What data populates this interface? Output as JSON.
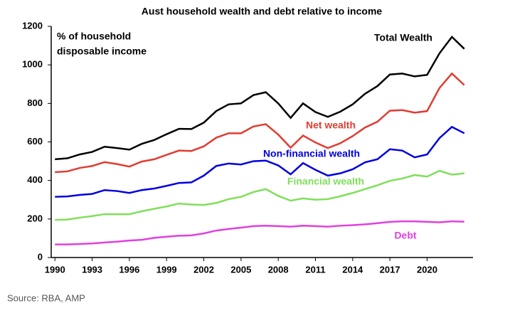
{
  "chart_data": {
    "type": "line",
    "title": "Aust household wealth and debt relative to income",
    "y_label": [
      "% of household",
      "disposable income"
    ],
    "source": "Source: RBA, AMP",
    "x": [
      1990,
      1991,
      1992,
      1993,
      1994,
      1995,
      1996,
      1997,
      1998,
      1999,
      2000,
      2001,
      2002,
      2003,
      2004,
      2005,
      2006,
      2007,
      2008,
      2009,
      2010,
      2011,
      2012,
      2013,
      2014,
      2015,
      2016,
      2017,
      2018,
      2019,
      2020,
      2021,
      2022,
      2023
    ],
    "xlim": [
      1989.7,
      2023.7
    ],
    "xticks": [
      1990,
      1993,
      1996,
      1999,
      2002,
      2005,
      2008,
      2011,
      2014,
      2017,
      2020
    ],
    "ylim": [
      0,
      1200
    ],
    "yticks": [
      0,
      200,
      400,
      600,
      800,
      1000,
      1200
    ],
    "series": [
      {
        "name": "Total Wealth",
        "color": "#000000",
        "values": [
          510,
          515,
          535,
          548,
          575,
          568,
          560,
          590,
          610,
          640,
          668,
          667,
          700,
          760,
          795,
          800,
          843,
          858,
          800,
          725,
          800,
          755,
          730,
          757,
          795,
          850,
          890,
          950,
          955,
          940,
          948,
          1060,
          1145,
          1083
        ]
      },
      {
        "name": "Net wealth",
        "color": "#e03c31",
        "values": [
          443,
          447,
          465,
          475,
          495,
          485,
          472,
          498,
          510,
          533,
          555,
          553,
          577,
          622,
          645,
          645,
          680,
          692,
          638,
          570,
          633,
          597,
          568,
          593,
          630,
          675,
          705,
          762,
          765,
          752,
          760,
          880,
          955,
          895
        ]
      },
      {
        "name": "Non-financial wealth",
        "color": "#0000e0",
        "values": [
          315,
          317,
          325,
          330,
          350,
          345,
          335,
          350,
          358,
          372,
          387,
          390,
          425,
          475,
          488,
          483,
          500,
          503,
          478,
          432,
          490,
          455,
          425,
          437,
          458,
          494,
          510,
          562,
          555,
          520,
          535,
          620,
          678,
          645
        ]
      },
      {
        "name": "Financial wealth",
        "color": "#7fe05a",
        "values": [
          195,
          197,
          207,
          215,
          225,
          225,
          225,
          240,
          253,
          265,
          280,
          275,
          273,
          283,
          303,
          315,
          340,
          355,
          320,
          295,
          307,
          300,
          303,
          318,
          335,
          355,
          375,
          398,
          410,
          428,
          420,
          450,
          430,
          437
        ]
      },
      {
        "name": "Debt",
        "color": "#e040e0",
        "values": [
          68,
          68,
          70,
          73,
          78,
          82,
          88,
          92,
          102,
          108,
          113,
          115,
          125,
          140,
          148,
          155,
          163,
          165,
          163,
          160,
          165,
          163,
          160,
          165,
          168,
          172,
          178,
          185,
          188,
          188,
          185,
          183,
          188,
          186
        ]
      }
    ]
  }
}
